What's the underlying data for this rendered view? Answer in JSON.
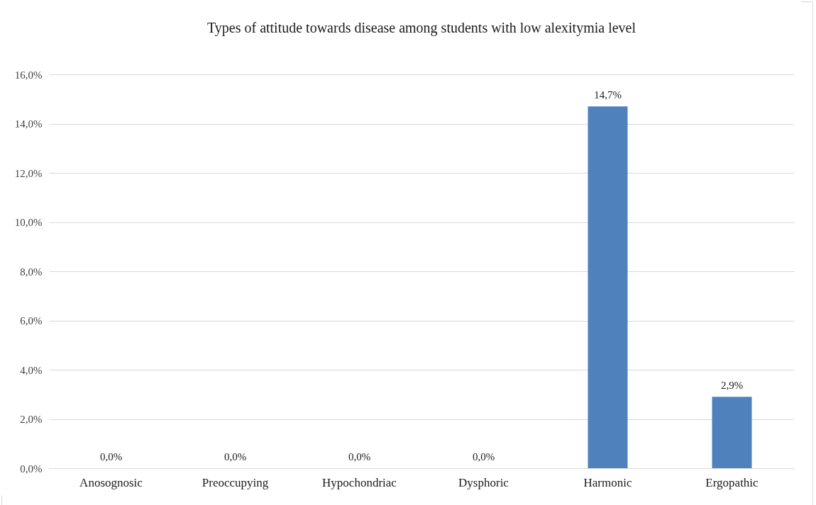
{
  "chart_data": {
    "type": "bar",
    "title": "Types of attitude towards disease among students with low alexitymia level",
    "categories": [
      "Anosognosic",
      "Preoccupying",
      "Hypochondriac",
      "Dysphoric",
      "Harmonic",
      "Ergopathic"
    ],
    "values": [
      0,
      0,
      0,
      0,
      14.7,
      2.9
    ],
    "color": "#4f81bd",
    "value_labels": [
      "0,0%",
      "0,0%",
      "0,0%",
      "0,0%",
      "14,7%",
      "2,9%"
    ],
    "ylim": [
      0,
      16
    ],
    "yticks": [
      {
        "value": 0,
        "label": "0,0%"
      },
      {
        "value": 2,
        "label": "2,0%"
      },
      {
        "value": 4,
        "label": "4,0%"
      },
      {
        "value": 6,
        "label": "6,0%"
      },
      {
        "value": 8,
        "label": "8,0%"
      },
      {
        "value": 10,
        "label": "10,0%"
      },
      {
        "value": 12,
        "label": "12,0%"
      },
      {
        "value": 14,
        "label": "14,0%"
      },
      {
        "value": 16,
        "label": "16,0%"
      }
    ],
    "grid": true
  }
}
